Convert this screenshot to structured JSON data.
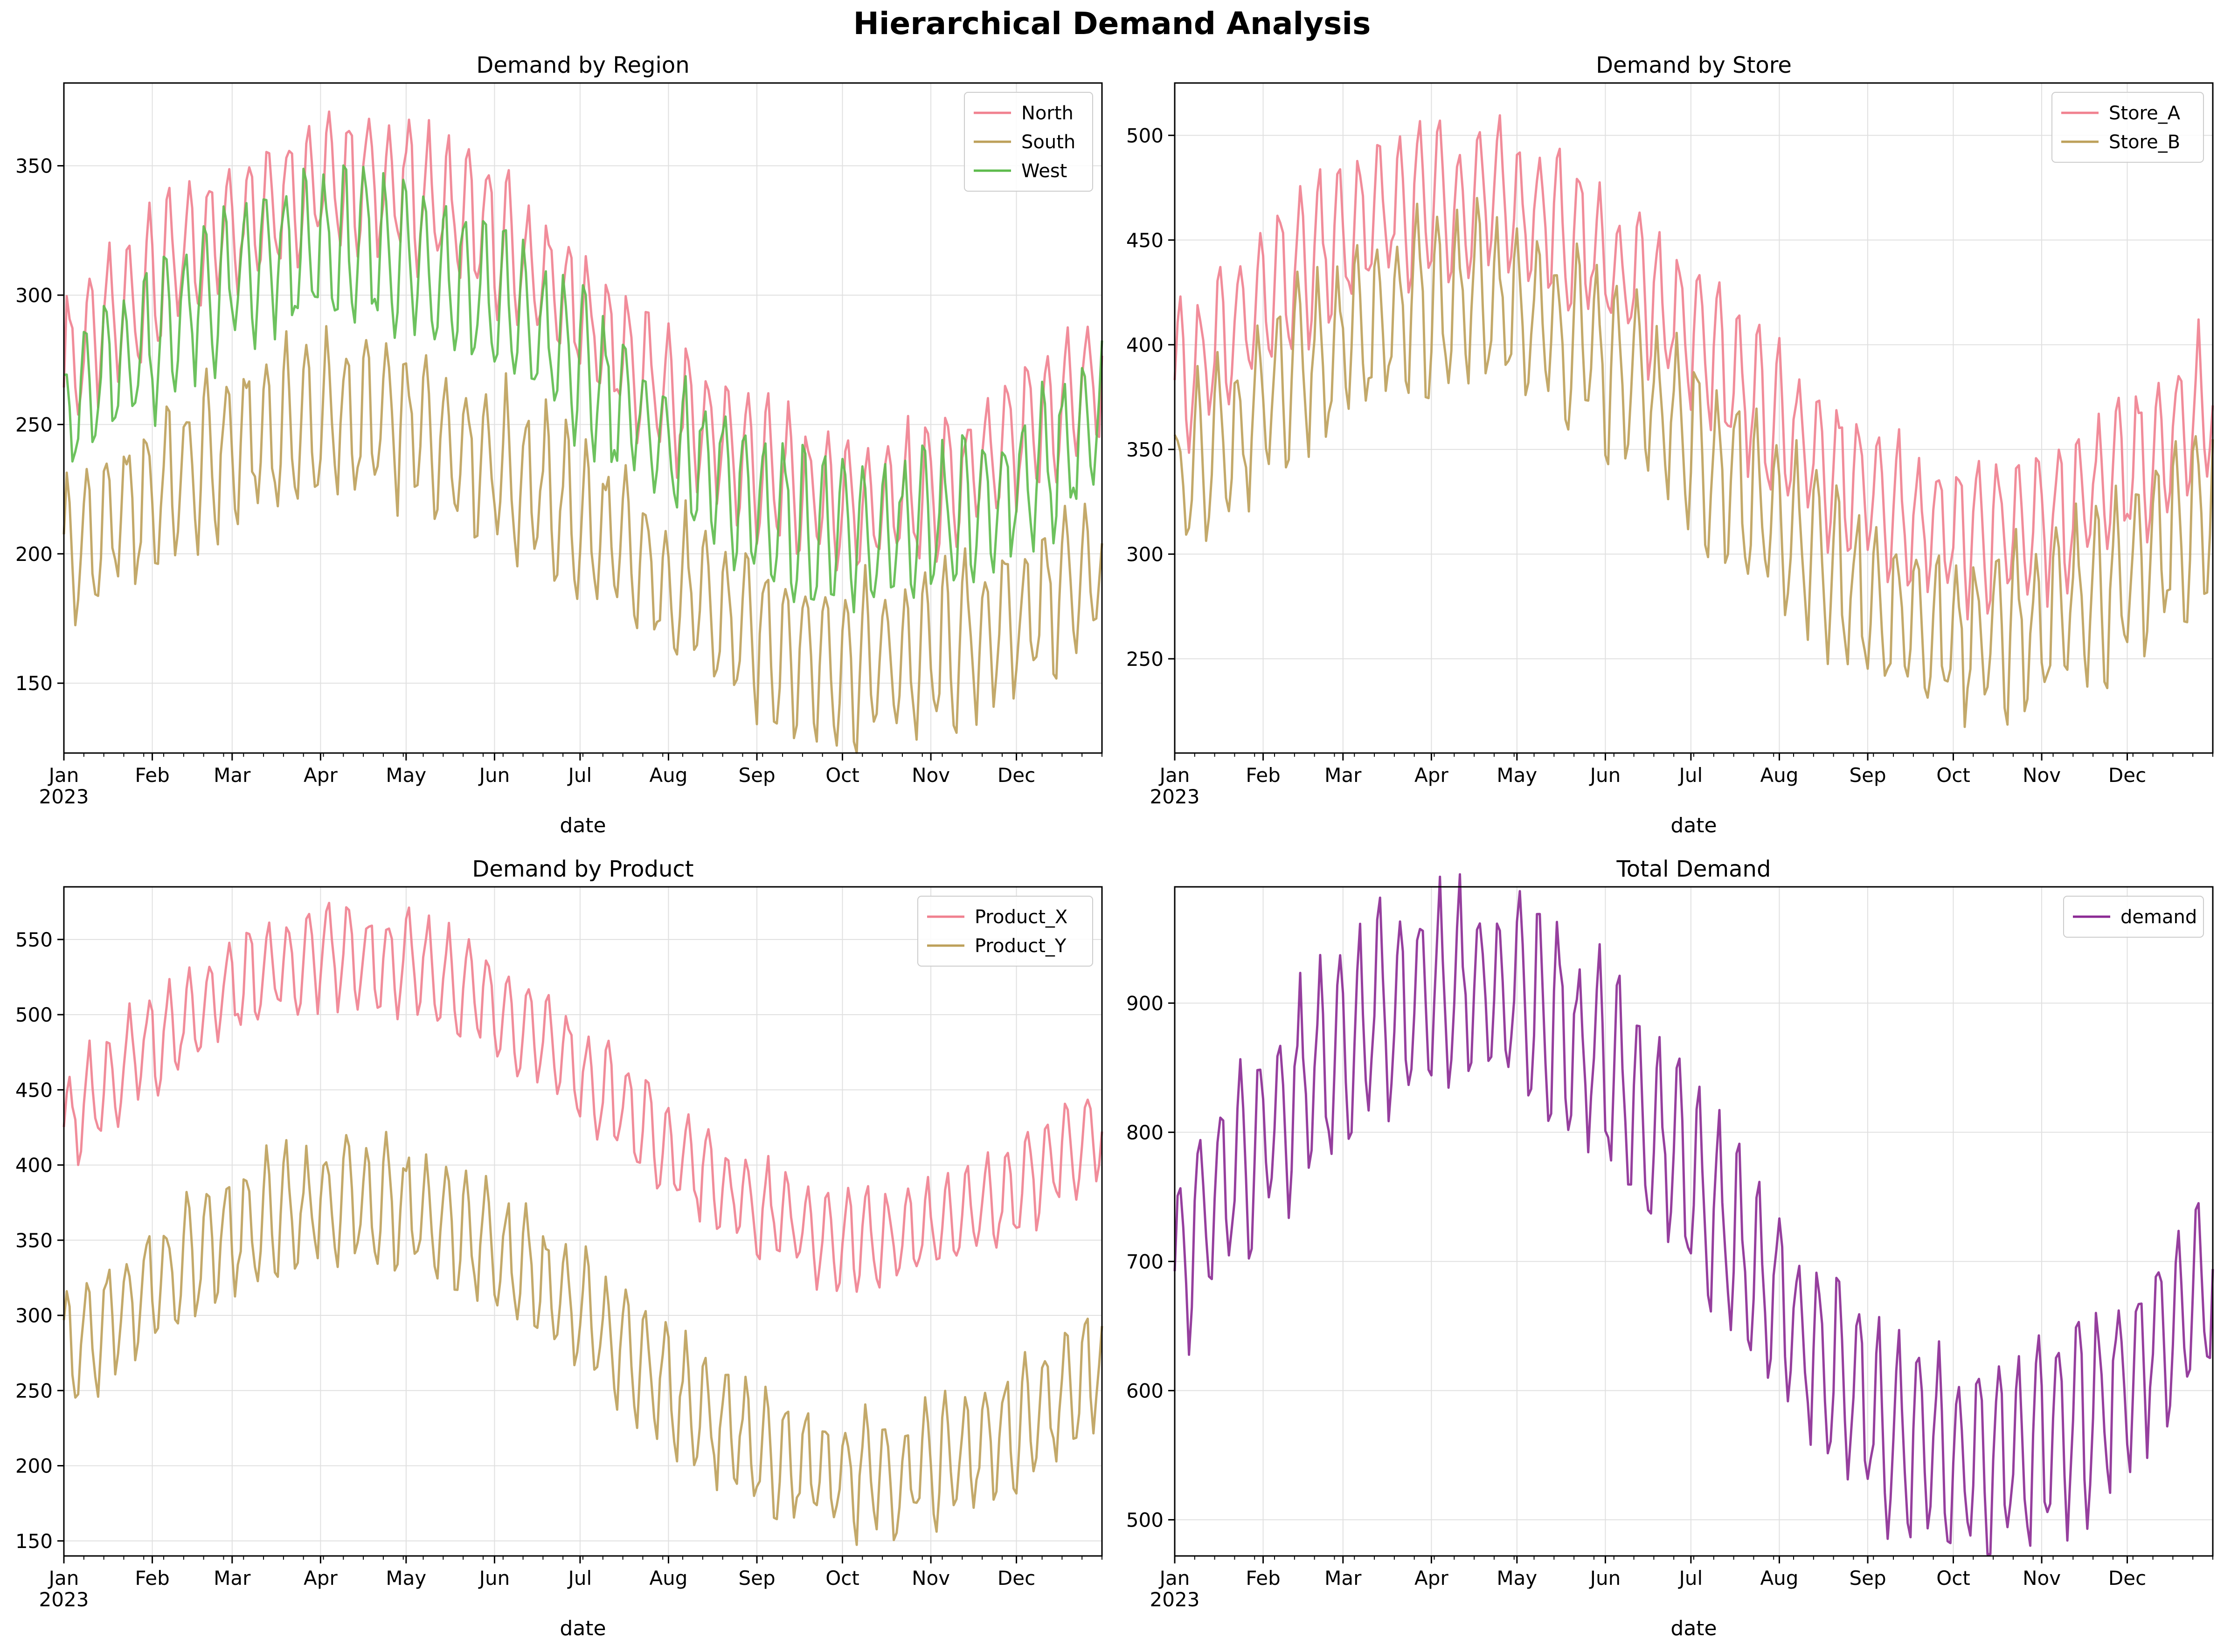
{
  "figure_title": "Hierarchical Demand Analysis",
  "colors": {
    "pink": "#f0808f",
    "olive": "#bda05a",
    "green": "#5dbb4c",
    "purple": "#8b2a94",
    "grid": "#e0e0e0"
  },
  "chart_data": [
    {
      "type": "line",
      "title": "Demand by Region",
      "xlabel": "date",
      "ylabel": "",
      "x_range": [
        "2023-01-01",
        "2023-12-31"
      ],
      "x_ticks": [
        "Jan",
        "Feb",
        "Mar",
        "Apr",
        "May",
        "Jun",
        "Jul",
        "Aug",
        "Sep",
        "Oct",
        "Nov",
        "Dec"
      ],
      "x_year_label": "2023",
      "ylim": [
        123,
        382
      ],
      "y_ticks": [
        150,
        200,
        250,
        300,
        350
      ],
      "grid": true,
      "legend": "top-right",
      "weekly_cycle": true,
      "series": [
        {
          "name": "North",
          "color": "#f0808f",
          "mean": 282,
          "amplitude": 62,
          "peak_day": 100,
          "weekly_amplitude": 24
        },
        {
          "name": "South",
          "color": "#bda05a",
          "mean": 205,
          "amplitude": 47,
          "peak_day": 100,
          "weekly_amplitude": 28
        },
        {
          "name": "West",
          "color": "#5dbb4c",
          "mean": 262,
          "amplitude": 56,
          "peak_day": 100,
          "weekly_amplitude": 26
        }
      ]
    },
    {
      "type": "line",
      "title": "Demand by Store",
      "xlabel": "date",
      "ylabel": "",
      "x_range": [
        "2023-01-01",
        "2023-12-31"
      ],
      "x_ticks": [
        "Jan",
        "Feb",
        "Mar",
        "Apr",
        "May",
        "Jun",
        "Jul",
        "Aug",
        "Sep",
        "Oct",
        "Nov",
        "Dec"
      ],
      "x_year_label": "2023",
      "ylim": [
        205,
        525
      ],
      "y_ticks": [
        250,
        300,
        350,
        400,
        450,
        500
      ],
      "grid": true,
      "legend": "top-right",
      "weekly_cycle": true,
      "series": [
        {
          "name": "Store_A",
          "color": "#f0808f",
          "mean": 390,
          "amplitude": 80,
          "peak_day": 100,
          "weekly_amplitude": 32
        },
        {
          "name": "Store_B",
          "color": "#bda05a",
          "mean": 340,
          "amplitude": 80,
          "peak_day": 100,
          "weekly_amplitude": 38
        }
      ]
    },
    {
      "type": "line",
      "title": "Demand by Product",
      "xlabel": "date",
      "ylabel": "",
      "x_range": [
        "2023-01-01",
        "2023-12-31"
      ],
      "x_ticks": [
        "Jan",
        "Feb",
        "Mar",
        "Apr",
        "May",
        "Jun",
        "Jul",
        "Aug",
        "Sep",
        "Oct",
        "Nov",
        "Dec"
      ],
      "x_year_label": "2023",
      "ylim": [
        140,
        585
      ],
      "y_ticks": [
        150,
        200,
        250,
        300,
        350,
        400,
        450,
        500,
        550
      ],
      "grid": true,
      "legend": "top-right",
      "weekly_cycle": true,
      "series": [
        {
          "name": "Product_X",
          "color": "#f0808f",
          "mean": 445,
          "amplitude": 95,
          "peak_day": 100,
          "weekly_amplitude": 30
        },
        {
          "name": "Product_Y",
          "color": "#bda05a",
          "mean": 285,
          "amplitude": 92,
          "peak_day": 100,
          "weekly_amplitude": 36
        }
      ]
    },
    {
      "type": "line",
      "title": "Total Demand",
      "xlabel": "date",
      "ylabel": "",
      "x_range": [
        "2023-01-01",
        "2023-12-31"
      ],
      "x_ticks": [
        "Jan",
        "Feb",
        "Mar",
        "Apr",
        "May",
        "Jun",
        "Jul",
        "Aug",
        "Sep",
        "Oct",
        "Nov",
        "Dec"
      ],
      "x_year_label": "2023",
      "ylim": [
        472,
        990
      ],
      "y_ticks": [
        500,
        600,
        700,
        800,
        900
      ],
      "grid": true,
      "legend": "top-right",
      "weekly_cycle": true,
      "series": [
        {
          "name": "demand",
          "color": "#8b2a94",
          "mean": 730,
          "amplitude": 185,
          "peak_day": 100,
          "weekly_amplitude": 70
        }
      ]
    }
  ]
}
